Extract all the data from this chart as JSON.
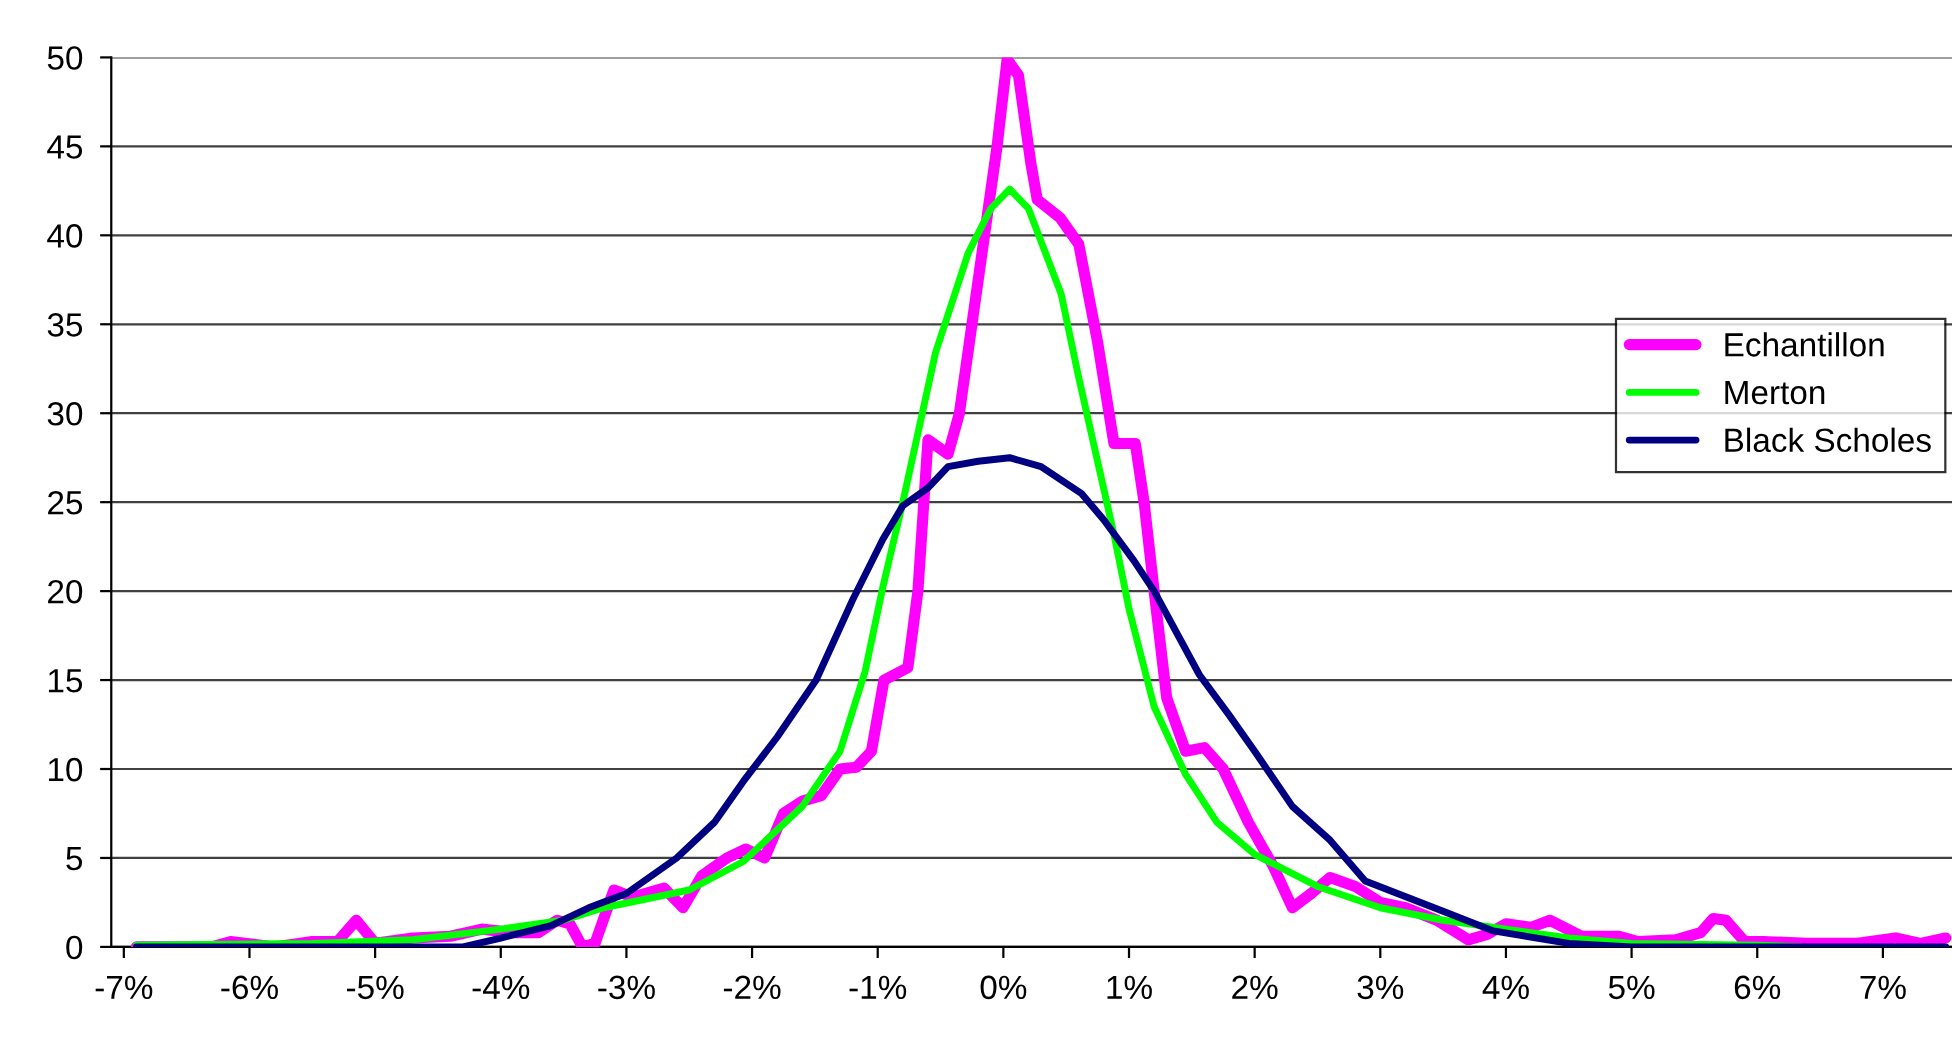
{
  "chart_data": {
    "type": "line",
    "xlim": [
      -7.1,
      7.55
    ],
    "xticks": [
      {
        "value": -7,
        "label": "-7%"
      },
      {
        "value": -6,
        "label": "-6%"
      },
      {
        "value": -5,
        "label": "-5%"
      },
      {
        "value": -4,
        "label": "-4%"
      },
      {
        "value": -3,
        "label": "-3%"
      },
      {
        "value": -2,
        "label": "-2%"
      },
      {
        "value": -1,
        "label": "-1%"
      },
      {
        "value": 0,
        "label": "0%"
      },
      {
        "value": 1,
        "label": "1%"
      },
      {
        "value": 2,
        "label": "2%"
      },
      {
        "value": 3,
        "label": "3%"
      },
      {
        "value": 4,
        "label": "4%"
      },
      {
        "value": 5,
        "label": "5%"
      },
      {
        "value": 6,
        "label": "6%"
      },
      {
        "value": 7,
        "label": "7%"
      }
    ],
    "ylim": [
      0,
      50
    ],
    "yticks": [
      0,
      5,
      10,
      15,
      20,
      25,
      30,
      35,
      40,
      45,
      50
    ],
    "grid": "y",
    "legend": "right",
    "marker": "none",
    "line_style": "solid",
    "series": [
      {
        "name": "Echantillon",
        "color": "#ff00ff",
        "x": [
          -6.9,
          -6.3,
          -6.15,
          -5.8,
          -5.5,
          -5.3,
          -5.15,
          -5.0,
          -4.7,
          -4.4,
          -4.15,
          -3.9,
          -3.7,
          -3.55,
          -3.45,
          -3.35,
          -3.25,
          -3.1,
          -2.95,
          -2.7,
          -2.55,
          -2.4,
          -2.2,
          -2.05,
          -1.9,
          -1.75,
          -1.6,
          -1.45,
          -1.3,
          -1.17,
          -1.05,
          -0.95,
          -0.76,
          -0.68,
          -0.6,
          -0.44,
          -0.35,
          -0.25,
          -0.15,
          -0.05,
          0.03,
          0.12,
          0.22,
          0.27,
          0.45,
          0.6,
          0.75,
          0.88,
          1.05,
          1.12,
          1.2,
          1.3,
          1.45,
          1.6,
          1.75,
          1.95,
          2.15,
          2.3,
          2.45,
          2.6,
          2.8,
          3.0,
          3.2,
          3.45,
          3.7,
          3.85,
          4.0,
          4.2,
          4.35,
          4.6,
          4.9,
          5.05,
          5.35,
          5.55,
          5.65,
          5.75,
          5.9,
          6.05,
          6.4,
          6.8,
          7.1,
          7.3,
          7.5
        ],
        "values": [
          0,
          0,
          0.3,
          0,
          0.3,
          0.3,
          1.5,
          0.2,
          0.5,
          0.6,
          1.0,
          0.8,
          0.8,
          1.5,
          1.3,
          0,
          0.2,
          3.2,
          2.8,
          3.3,
          2.2,
          4.0,
          5.0,
          5.5,
          5.0,
          7.5,
          8.2,
          8.5,
          10.0,
          10.1,
          11.0,
          15.0,
          15.7,
          20.0,
          28.5,
          27.7,
          30.0,
          35.0,
          40.0,
          45.0,
          49.9,
          49.0,
          44.0,
          42.0,
          41.0,
          39.5,
          34.0,
          28.3,
          28.3,
          25.0,
          20.0,
          14.0,
          11.0,
          11.2,
          10.0,
          7.0,
          4.5,
          2.2,
          3.0,
          3.9,
          3.4,
          2.5,
          2.2,
          1.5,
          0.4,
          0.7,
          1.3,
          1.1,
          1.5,
          0.6,
          0.6,
          0.3,
          0.4,
          0.8,
          1.6,
          1.5,
          0.3,
          0.3,
          0.2,
          0.2,
          0.5,
          0.2,
          0.5
        ]
      },
      {
        "name": "Merton",
        "color": "#00ff00",
        "x": [
          -6.9,
          -5.5,
          -4.7,
          -4.0,
          -3.5,
          -3.18,
          -2.5,
          -2.07,
          -1.6,
          -1.3,
          -1.1,
          -0.96,
          -0.8,
          -0.54,
          -0.28,
          -0.1,
          0.05,
          0.2,
          0.46,
          0.6,
          0.88,
          1.0,
          1.2,
          1.45,
          1.7,
          2.0,
          2.5,
          3.0,
          3.5,
          4.0,
          4.5,
          5.0,
          6.0,
          6.35
        ],
        "values": [
          0.1,
          0.2,
          0.4,
          1.0,
          1.5,
          2.2,
          3.2,
          4.8,
          7.9,
          11.0,
          15.5,
          20.2,
          25.0,
          33.4,
          39.0,
          41.5,
          42.6,
          41.5,
          36.7,
          32.0,
          23.2,
          19.0,
          13.5,
          9.7,
          7.0,
          5.2,
          3.4,
          2.2,
          1.5,
          1.0,
          0.5,
          0.2,
          0.1,
          0
        ]
      },
      {
        "name": "Black Scholes",
        "color": "#000080",
        "x": [
          -6.9,
          -4.3,
          -4.0,
          -3.6,
          -3.3,
          -3.0,
          -2.6,
          -2.3,
          -2.07,
          -1.8,
          -1.49,
          -1.2,
          -0.96,
          -0.8,
          -0.6,
          -0.44,
          -0.2,
          0.05,
          0.3,
          0.62,
          0.8,
          1.04,
          1.2,
          1.56,
          1.8,
          2.0,
          2.3,
          2.6,
          2.88,
          3.5,
          3.9,
          4.5,
          5.0,
          7.5
        ],
        "values": [
          0,
          0,
          0.5,
          1.2,
          2.2,
          3.0,
          5.0,
          7.0,
          9.3,
          11.8,
          15.0,
          19.5,
          22.9,
          24.8,
          25.8,
          27.0,
          27.3,
          27.5,
          27.0,
          25.5,
          24.0,
          21.7,
          20.0,
          15.3,
          13.0,
          11.0,
          7.9,
          6.0,
          3.7,
          2.0,
          0.9,
          0.2,
          0,
          0
        ]
      }
    ]
  }
}
